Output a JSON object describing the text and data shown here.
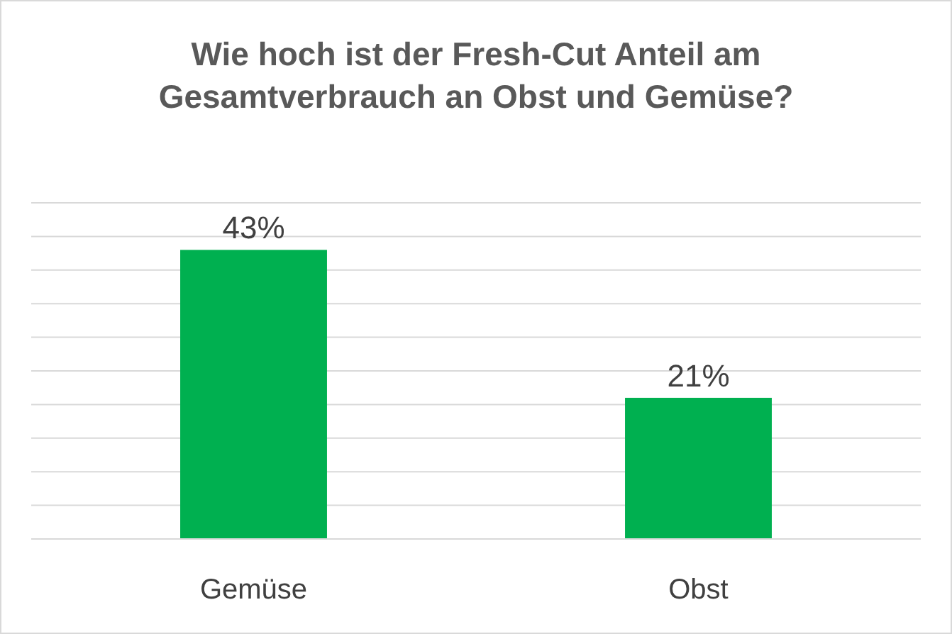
{
  "chart_data": {
    "type": "bar",
    "title": "Wie hoch ist der Fresh-Cut Anteil am Gesamtverbrauch an Obst und Gemüse?",
    "categories": [
      "Gemüse",
      "Obst"
    ],
    "values": [
      43,
      21
    ],
    "value_labels": [
      "43%",
      "21%"
    ],
    "color": "#00b050",
    "ylim": [
      0,
      50
    ],
    "yticks": [
      {
        "value": 0,
        "label": null
      },
      {
        "value": 5,
        "label": null
      },
      {
        "value": 10,
        "label": null
      },
      {
        "value": 15,
        "label": null
      },
      {
        "value": 20,
        "label": null
      },
      {
        "value": 25,
        "label": null
      },
      {
        "value": 30,
        "label": null
      },
      {
        "value": 35,
        "label": null
      },
      {
        "value": 40,
        "label": null
      },
      {
        "value": 45,
        "label": null
      },
      {
        "value": 50,
        "label": null
      }
    ],
    "grid": "y",
    "tick_labels": "x"
  }
}
